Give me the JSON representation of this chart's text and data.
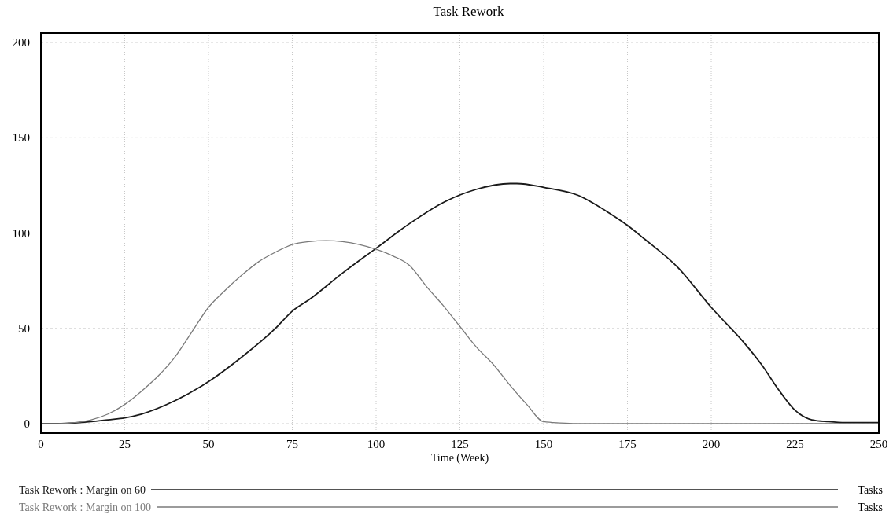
{
  "chart_data": {
    "type": "line",
    "title": "Task Rework",
    "xlabel": "Time (Week)",
    "xlim": [
      0,
      250
    ],
    "ylim": [
      -5,
      205
    ],
    "xticks": [
      0,
      25,
      50,
      75,
      100,
      125,
      150,
      175,
      200,
      225,
      250
    ],
    "yticks": [
      0,
      50,
      100,
      150,
      200
    ],
    "grid": true,
    "legend": "bottom",
    "annotations": [
      "Tasks",
      "Tasks"
    ],
    "series": [
      {
        "name": "Task Rework : Margin on 60",
        "color": "#1a1a1a",
        "x": [
          0,
          5,
          10,
          15,
          20,
          25,
          30,
          40,
          50,
          60,
          70,
          75,
          80,
          90,
          100,
          110,
          120,
          125,
          130,
          140,
          142,
          150,
          160,
          170,
          175,
          180,
          190,
          200,
          210,
          215,
          220,
          225,
          230,
          235,
          240,
          250
        ],
        "values": [
          0,
          0,
          0.3,
          1,
          2,
          3,
          5,
          12,
          22,
          35,
          50,
          59,
          65,
          79,
          92,
          105,
          116,
          120,
          123,
          126,
          126,
          124,
          120,
          110,
          104,
          97,
          82,
          61,
          42,
          31,
          18,
          7,
          2,
          1,
          0.5,
          0.5
        ]
      },
      {
        "name": "Task Rework : Margin on 100",
        "color": "#7a7a7a",
        "x": [
          0,
          5,
          10,
          15,
          20,
          25,
          30,
          35,
          40,
          45,
          50,
          55,
          60,
          65,
          70,
          75,
          80,
          85,
          90,
          95,
          100,
          105,
          110,
          115,
          120,
          125,
          130,
          135,
          140,
          145,
          150,
          155,
          160,
          170,
          200,
          250
        ],
        "values": [
          0,
          0,
          0.5,
          2,
          5,
          10,
          17,
          25,
          35,
          48,
          61,
          70,
          78,
          85,
          90,
          94,
          95.5,
          96,
          95.5,
          94,
          91.5,
          88,
          83,
          72,
          62,
          51,
          40,
          31,
          20,
          10,
          1,
          0.3,
          0,
          0,
          0,
          0
        ]
      }
    ]
  }
}
